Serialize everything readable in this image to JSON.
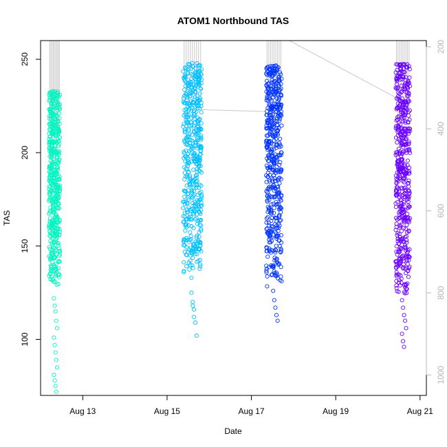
{
  "chart_data": {
    "type": "scatter",
    "title": "ATOM1 Northbound TAS",
    "xlabel": "Date",
    "ylabel": "TAS",
    "x_ticks": [
      "Aug 13",
      "Aug 15",
      "Aug 17",
      "Aug 19",
      "Aug 21"
    ],
    "y_ticks": [
      100,
      150,
      200,
      250
    ],
    "y2_ticks": [
      200,
      400,
      600,
      800,
      1000
    ],
    "xlim_days": [
      12.0,
      21.15
    ],
    "ylim": [
      70,
      260
    ],
    "y2lim": [
      1050,
      185
    ],
    "colors": {
      "axis_right": "#b5b5b5",
      "trace_line": "#c8c8c8",
      "aug12": "#00f5c0",
      "aug15": "#00bfff",
      "aug17": "#0033ff",
      "aug20": "#6a00ff"
    },
    "series": [
      {
        "color": "#00f5c0",
        "x_start": 12.2,
        "x_end": 12.46,
        "y_range": [
          129,
          233
        ],
        "low_outliers": [
          122,
          118,
          115,
          110,
          106,
          101,
          97,
          93,
          89,
          85,
          81,
          78,
          75,
          72
        ]
      },
      {
        "color": "#00bfff",
        "x_start": 15.38,
        "x_end": 15.82,
        "y_range": [
          135,
          248
        ],
        "low_outliers": [
          133,
          118,
          112,
          109,
          102,
          125,
          120,
          116
        ]
      },
      {
        "color": "#0033ff",
        "x_start": 17.35,
        "x_end": 17.72,
        "y_range": [
          128,
          247
        ],
        "low_outliers": [
          126,
          121,
          117,
          113,
          110
        ]
      },
      {
        "color": "#6a00ff",
        "x_start": 20.42,
        "x_end": 20.76,
        "y_range": [
          124,
          248
        ],
        "low_outliers": [
          121,
          117,
          113,
          110,
          106,
          103,
          99,
          96
        ]
      }
    ],
    "trace_segments": [
      {
        "x": [
          15.82,
          17.35
        ],
        "y": [
          223,
          222
        ]
      },
      {
        "x": [
          17.9,
          20.55
        ],
        "y": [
          260,
          228
        ]
      }
    ],
    "grid": false,
    "legend": "none"
  }
}
